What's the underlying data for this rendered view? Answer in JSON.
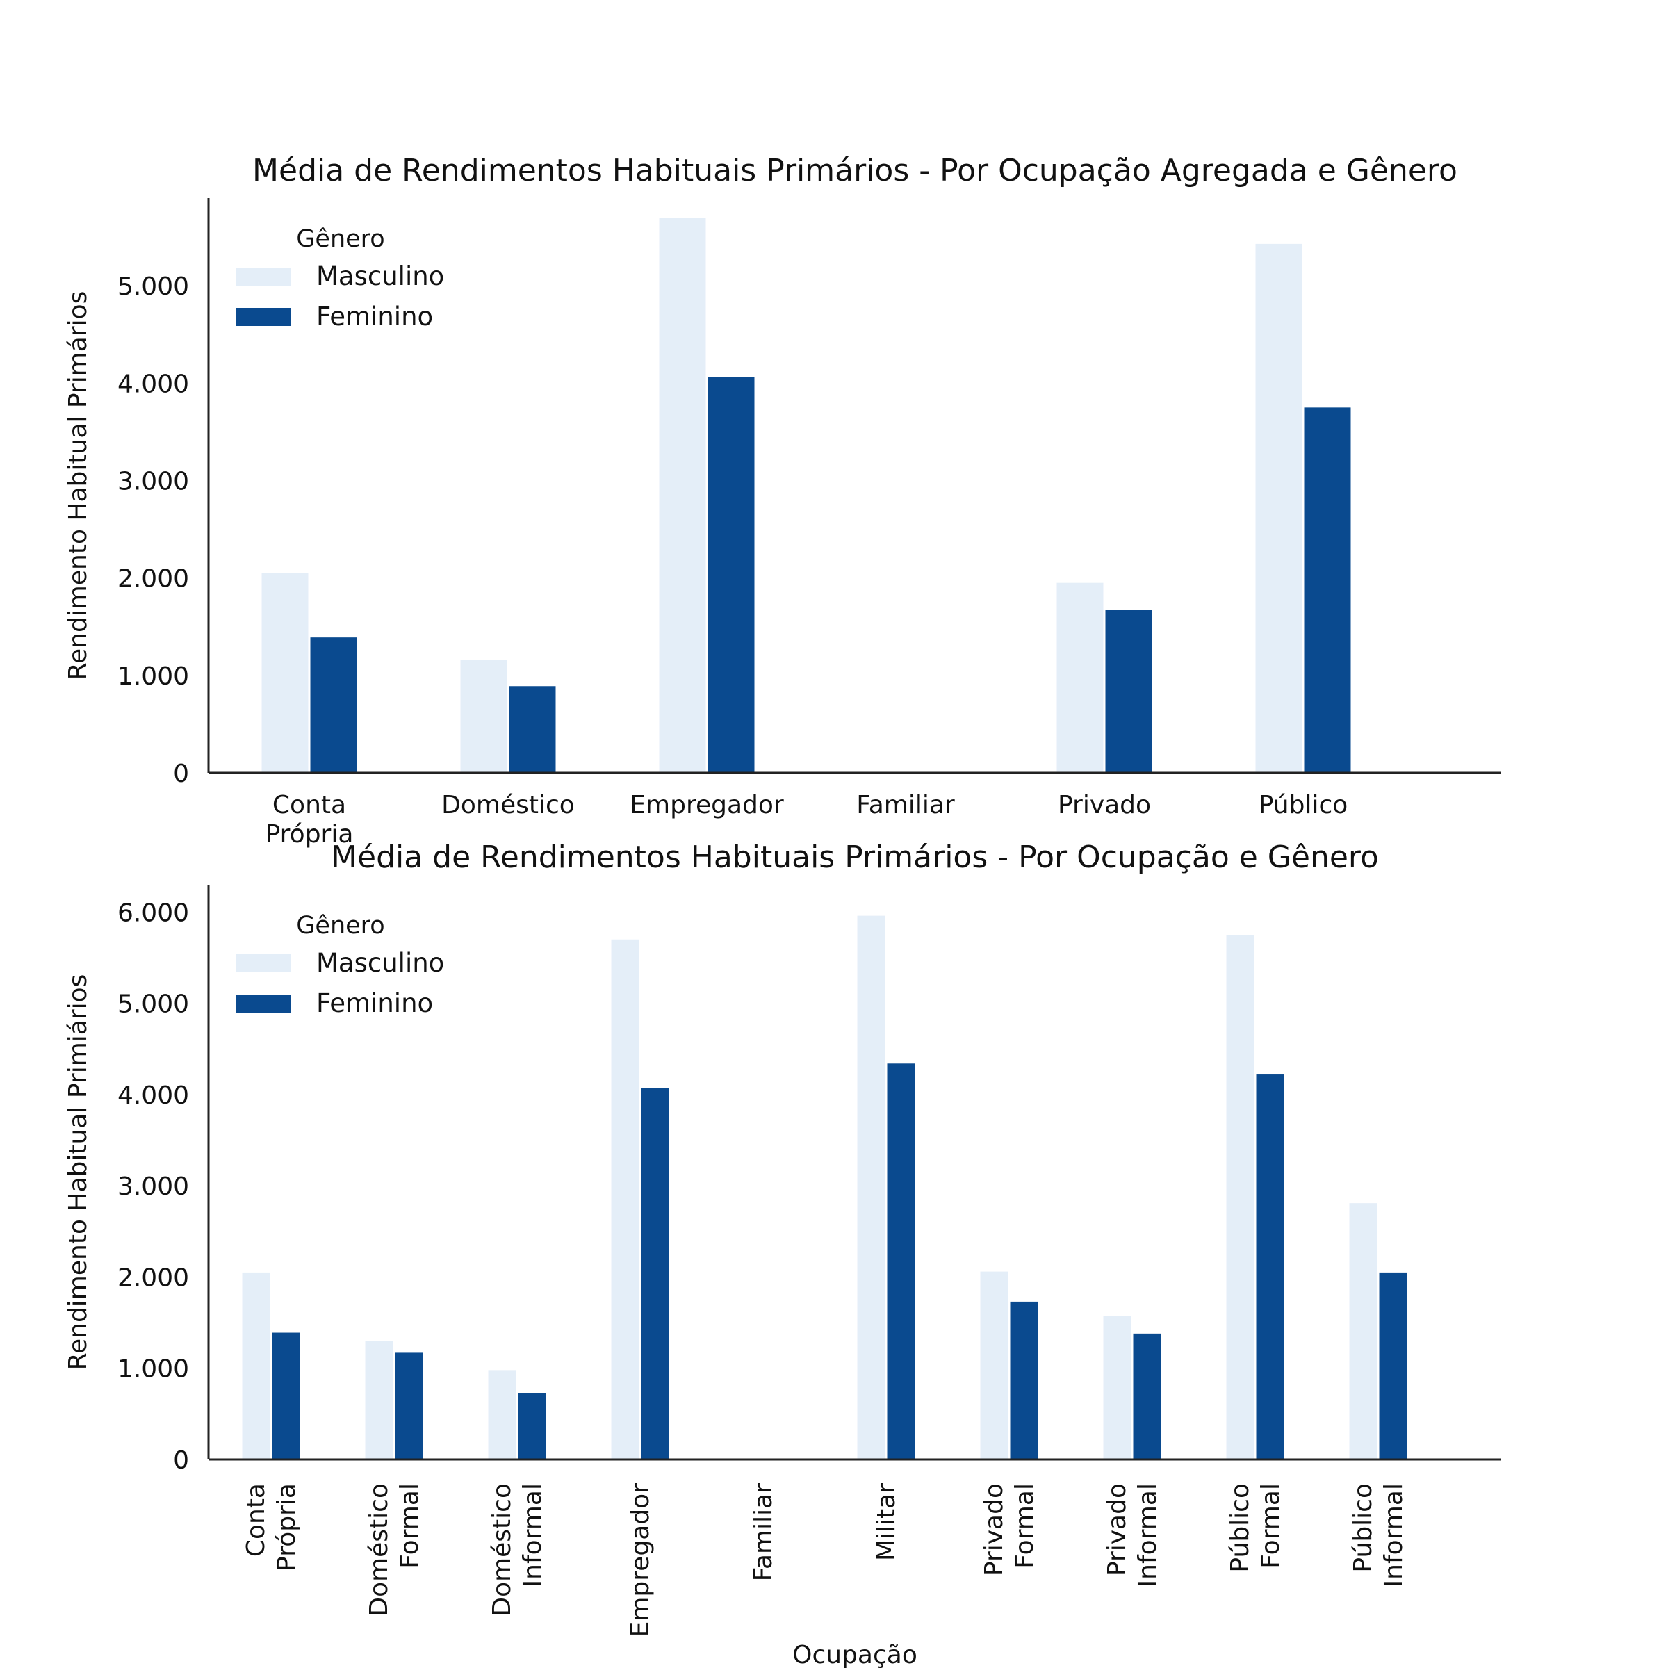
{
  "chart_data": [
    {
      "type": "bar",
      "title": "Média de Rendimentos Habituais Primários - Por Ocupação Agregada e Gênero",
      "xlabel": "",
      "ylabel": "Rendimento Habitual Primários",
      "ylim": [
        0,
        5900
      ],
      "yticks": [
        0,
        1000,
        2000,
        3000,
        4000,
        5000
      ],
      "ytick_labels": [
        "0",
        "1.000",
        "2.000",
        "3.000",
        "4.000",
        "5.000"
      ],
      "categories": [
        [
          "Conta",
          "Própria"
        ],
        [
          "Doméstico"
        ],
        [
          "Empregador"
        ],
        [
          "Familiar"
        ],
        [
          "Privado"
        ],
        [
          "Público"
        ]
      ],
      "xtick_rotation": 0,
      "legend": {
        "title": "Gênero",
        "placement": "top-left"
      },
      "series": [
        {
          "name": "Masculino",
          "color": "#e4eef8",
          "values": [
            2050,
            1160,
            5700,
            null,
            1950,
            5430
          ]
        },
        {
          "name": "Feminino",
          "color": "#0a4a8f",
          "values": [
            1390,
            890,
            4060,
            null,
            1670,
            3750
          ]
        }
      ]
    },
    {
      "type": "bar",
      "title": "Média de Rendimentos Habituais Primários - Por Ocupação e Gênero",
      "xlabel": "Ocupação",
      "ylabel": "Rendimento Habitual Primiários",
      "ylim": [
        0,
        6300
      ],
      "yticks": [
        0,
        1000,
        2000,
        3000,
        4000,
        5000,
        6000
      ],
      "ytick_labels": [
        "0",
        "1.000",
        "2.000",
        "3.000",
        "4.000",
        "5.000",
        "6.000"
      ],
      "categories": [
        [
          "Conta",
          "Própria"
        ],
        [
          "Doméstico",
          "Formal"
        ],
        [
          "Doméstico",
          "Informal"
        ],
        [
          "Empregador"
        ],
        [
          "Familiar"
        ],
        [
          "Militar"
        ],
        [
          "Privado",
          "Formal"
        ],
        [
          "Privado",
          "Informal"
        ],
        [
          "Público",
          "Formal"
        ],
        [
          "Público",
          "Informal"
        ]
      ],
      "xtick_rotation": -90,
      "legend": {
        "title": "Gênero",
        "placement": "top-left"
      },
      "series": [
        {
          "name": "Masculino",
          "color": "#e4eef8",
          "values": [
            2050,
            1300,
            980,
            5700,
            null,
            5960,
            2060,
            1570,
            5750,
            2810
          ]
        },
        {
          "name": "Feminino",
          "color": "#0a4a8f",
          "values": [
            1390,
            1170,
            730,
            4070,
            null,
            4340,
            1730,
            1380,
            4220,
            2050
          ]
        }
      ]
    }
  ]
}
